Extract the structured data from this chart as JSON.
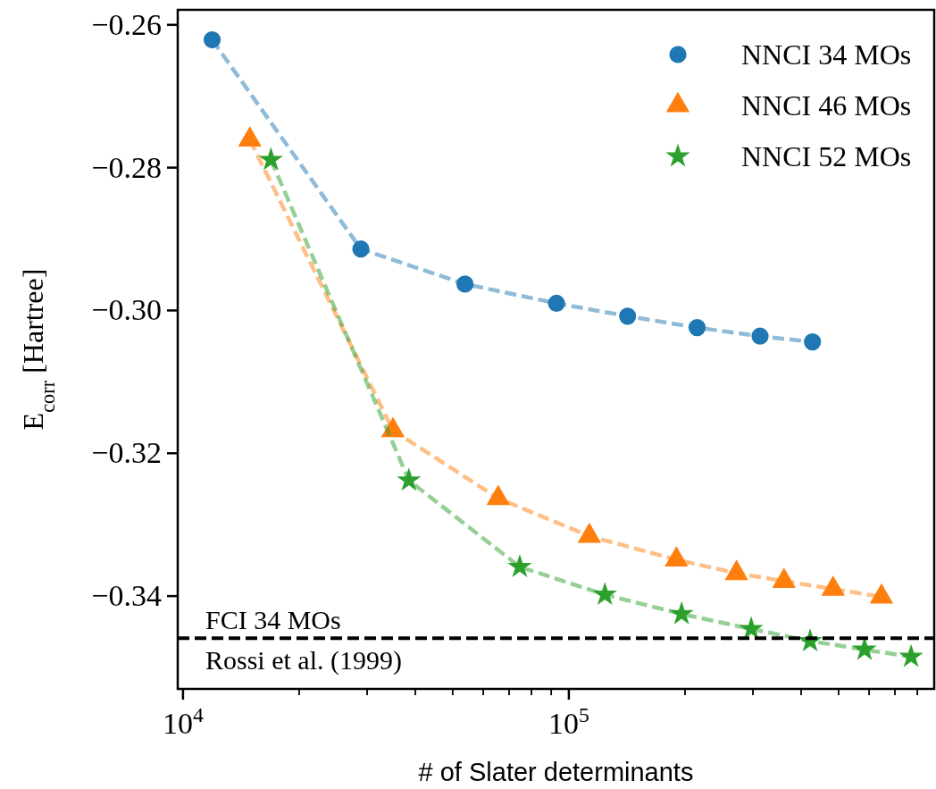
{
  "chart_data": {
    "type": "line",
    "xlabel": "# of Slater determinants",
    "ylabel": "E$_{corr}$ [Hartree]",
    "log": "x",
    "grid": false,
    "legend": "top right",
    "line_style": "dashed",
    "xlim": [
      9690,
      885000
    ],
    "ylim": [
      -0.353,
      -0.2579
    ],
    "xticks": [
      {
        "value": 10000,
        "label": "10$^{4}$"
      },
      {
        "value": 20000,
        "label": null
      },
      {
        "value": 30000,
        "label": null
      },
      {
        "value": 40000,
        "label": null
      },
      {
        "value": 50000,
        "label": null
      },
      {
        "value": 60000,
        "label": null
      },
      {
        "value": 70000,
        "label": null
      },
      {
        "value": 80000,
        "label": null
      },
      {
        "value": 90000,
        "label": null
      },
      {
        "value": 100000,
        "label": "10$^{5}$"
      },
      {
        "value": 200000,
        "label": null
      },
      {
        "value": 300000,
        "label": null
      },
      {
        "value": 400000,
        "label": null
      },
      {
        "value": 500000,
        "label": null
      },
      {
        "value": 600000,
        "label": null
      },
      {
        "value": 700000,
        "label": null
      },
      {
        "value": 800000,
        "label": null
      }
    ],
    "yticks": [
      {
        "value": -0.26,
        "label": "−0.26"
      },
      {
        "value": -0.28,
        "label": "−0.28"
      },
      {
        "value": -0.3,
        "label": "−0.30"
      },
      {
        "value": -0.32,
        "label": "−0.32"
      },
      {
        "value": -0.34,
        "label": "−0.34"
      }
    ],
    "series": [
      {
        "name": "NNCI 34 MOs",
        "color": "#1f77b4",
        "marker": "circle",
        "x": [
          11900,
          28900,
          53800,
          92900,
          142000,
          215000,
          313000,
          428000
        ],
        "values": [
          -0.2621,
          -0.2914,
          -0.2963,
          -0.299,
          -0.3008,
          -0.3024,
          -0.3036,
          -0.3044
        ]
      },
      {
        "name": "NNCI 46 MOs",
        "color": "#ff7f0e",
        "marker": "triangle",
        "x": [
          14900,
          35000,
          65600,
          113000,
          190000,
          272000,
          361000,
          484000,
          646000
        ],
        "values": [
          -0.2761,
          -0.3168,
          -0.3263,
          -0.3316,
          -0.3349,
          -0.3368,
          -0.3379,
          -0.339,
          -0.3401
        ]
      },
      {
        "name": "NNCI 52 MOs",
        "color": "#2ca02c",
        "marker": "star",
        "x": [
          16900,
          38500,
          74600,
          124000,
          196000,
          297000,
          422000,
          584000,
          771000
        ],
        "values": [
          -0.2789,
          -0.3238,
          -0.3359,
          -0.3398,
          -0.3425,
          -0.3446,
          -0.3463,
          -0.3475,
          -0.3485
        ]
      }
    ],
    "ref_lines": [
      {
        "axis": "y",
        "value": -0.3459,
        "label": "FCI 34 MOs",
        "color": "#000000",
        "line_style": "dashed"
      }
    ],
    "annotations": [
      "Rossi et al. (1999)"
    ]
  }
}
